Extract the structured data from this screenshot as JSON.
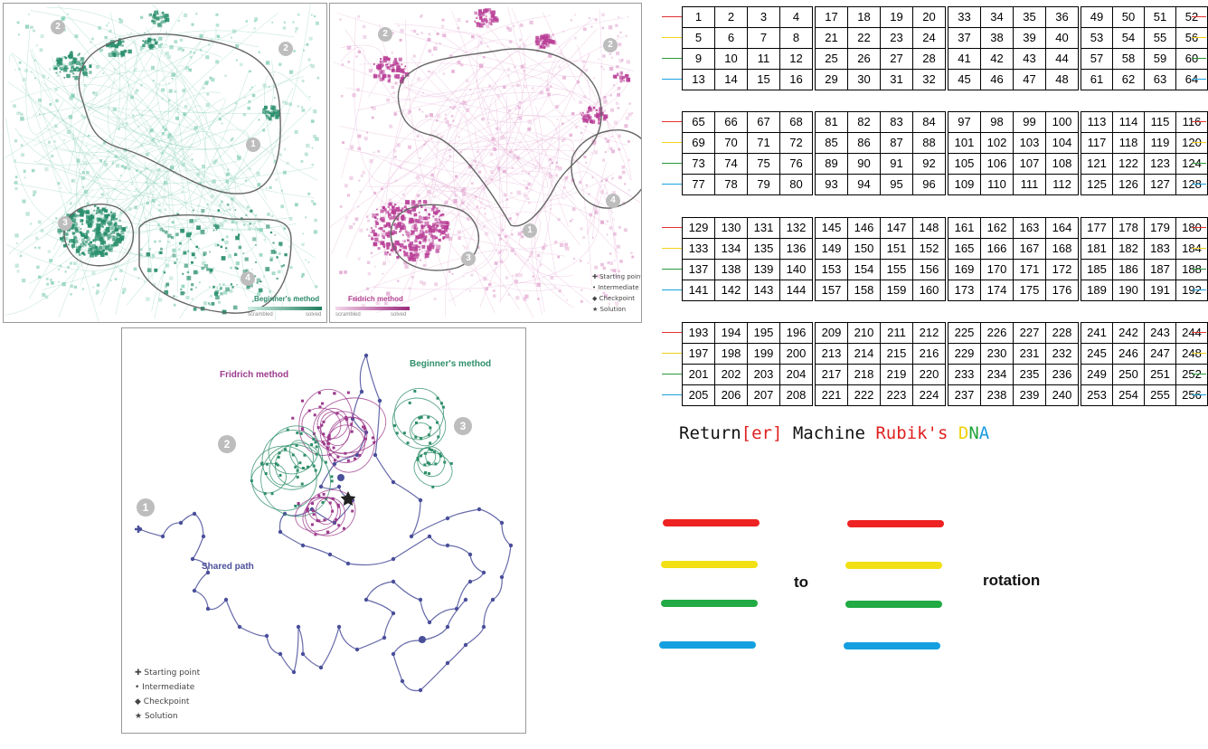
{
  "panel_left": {
    "series_label": "Beginner's method",
    "scale_start": "scrambled",
    "scale_end": "solved",
    "region_badges": [
      "2",
      "2",
      "1",
      "3",
      "4"
    ],
    "accent": "#2e9a78"
  },
  "panel_mid": {
    "series_label": "Fridrich method",
    "scale_start": "scrambled",
    "scale_end": "solved",
    "region_badges": [
      "2",
      "2",
      "4",
      "1",
      "3"
    ],
    "accent": "#c04aa3",
    "legend": [
      "Starting point",
      "Intermediate",
      "Checkpoint",
      "Solution"
    ]
  },
  "panel_bottom": {
    "label_fridrich": "Fridrich method",
    "label_beginner": "Beginner's method",
    "label_shared": "Shared path",
    "region_badges": [
      "3",
      "2",
      "1"
    ],
    "legend": [
      "Starting point",
      "Intermediate",
      "Checkpoint",
      "Solution"
    ],
    "colors": {
      "fridrich": "#9c3a8c",
      "beginner": "#2f8f6a",
      "shared": "#4a4f9a"
    }
  },
  "grid": {
    "blocks": [
      [
        [
          1,
          2,
          3,
          4
        ],
        [
          5,
          6,
          7,
          8
        ],
        [
          9,
          10,
          11,
          12
        ],
        [
          13,
          14,
          15,
          16
        ]
      ],
      [
        [
          17,
          18,
          19,
          20
        ],
        [
          21,
          22,
          23,
          24
        ],
        [
          25,
          26,
          27,
          28
        ],
        [
          29,
          30,
          31,
          32
        ]
      ],
      [
        [
          33,
          34,
          35,
          36
        ],
        [
          37,
          38,
          39,
          40
        ],
        [
          41,
          42,
          43,
          44
        ],
        [
          45,
          46,
          47,
          48
        ]
      ],
      [
        [
          49,
          50,
          51,
          52
        ],
        [
          53,
          54,
          55,
          56
        ],
        [
          57,
          58,
          59,
          60
        ],
        [
          61,
          62,
          63,
          64
        ]
      ],
      [
        [
          65,
          66,
          67,
          68
        ],
        [
          69,
          70,
          71,
          72
        ],
        [
          73,
          74,
          75,
          76
        ],
        [
          77,
          78,
          79,
          80
        ]
      ],
      [
        [
          81,
          82,
          83,
          84
        ],
        [
          85,
          86,
          87,
          88
        ],
        [
          89,
          90,
          91,
          92
        ],
        [
          93,
          94,
          95,
          96
        ]
      ],
      [
        [
          97,
          98,
          99,
          100
        ],
        [
          101,
          102,
          103,
          104
        ],
        [
          105,
          106,
          107,
          108
        ],
        [
          109,
          110,
          111,
          112
        ]
      ],
      [
        [
          113,
          114,
          115,
          116
        ],
        [
          117,
          118,
          119,
          120
        ],
        [
          121,
          122,
          123,
          124
        ],
        [
          125,
          126,
          127,
          128
        ]
      ],
      [
        [
          129,
          130,
          131,
          132
        ],
        [
          133,
          134,
          135,
          136
        ],
        [
          137,
          138,
          139,
          140
        ],
        [
          141,
          142,
          143,
          144
        ]
      ],
      [
        [
          145,
          146,
          147,
          148
        ],
        [
          149,
          150,
          151,
          152
        ],
        [
          153,
          154,
          155,
          156
        ],
        [
          157,
          158,
          159,
          160
        ]
      ],
      [
        [
          161,
          162,
          163,
          164
        ],
        [
          165,
          166,
          167,
          168
        ],
        [
          169,
          170,
          171,
          172
        ],
        [
          173,
          174,
          175,
          176
        ]
      ],
      [
        [
          177,
          178,
          179,
          180
        ],
        [
          181,
          182,
          183,
          184
        ],
        [
          185,
          186,
          187,
          188
        ],
        [
          189,
          190,
          191,
          192
        ]
      ],
      [
        [
          193,
          194,
          195,
          196
        ],
        [
          197,
          198,
          199,
          200
        ],
        [
          201,
          202,
          203,
          204
        ],
        [
          205,
          206,
          207,
          208
        ]
      ],
      [
        [
          209,
          210,
          211,
          212
        ],
        [
          213,
          214,
          215,
          216
        ],
        [
          217,
          218,
          219,
          220
        ],
        [
          221,
          222,
          223,
          224
        ]
      ],
      [
        [
          225,
          226,
          227,
          228
        ],
        [
          229,
          230,
          231,
          232
        ],
        [
          233,
          234,
          235,
          236
        ],
        [
          237,
          238,
          239,
          240
        ]
      ],
      [
        [
          241,
          242,
          243,
          244
        ],
        [
          245,
          246,
          247,
          248
        ],
        [
          249,
          250,
          251,
          252
        ],
        [
          253,
          254,
          255,
          256
        ]
      ]
    ],
    "row_colors": [
      "#e53030",
      "#f2d21c",
      "#2a9a3a",
      "#1aa0e0"
    ]
  },
  "title": {
    "part1": "Return",
    "part2": "[er]",
    "part3": " Machine ",
    "part4": "Rubik's",
    "part5": " ",
    "letter_d": "D",
    "letter_n": "N",
    "letter_a": "A",
    "colors": {
      "black": "#111111",
      "red": "#e02020",
      "yellow": "#f0d000",
      "green": "#22a33a",
      "blue": "#1a9ae0"
    }
  },
  "rotation": {
    "word_to": "to",
    "word_rotation": "rotation",
    "bar_colors": [
      "#ee2222",
      "#f2e014",
      "#22aa44",
      "#14a0e0"
    ]
  }
}
